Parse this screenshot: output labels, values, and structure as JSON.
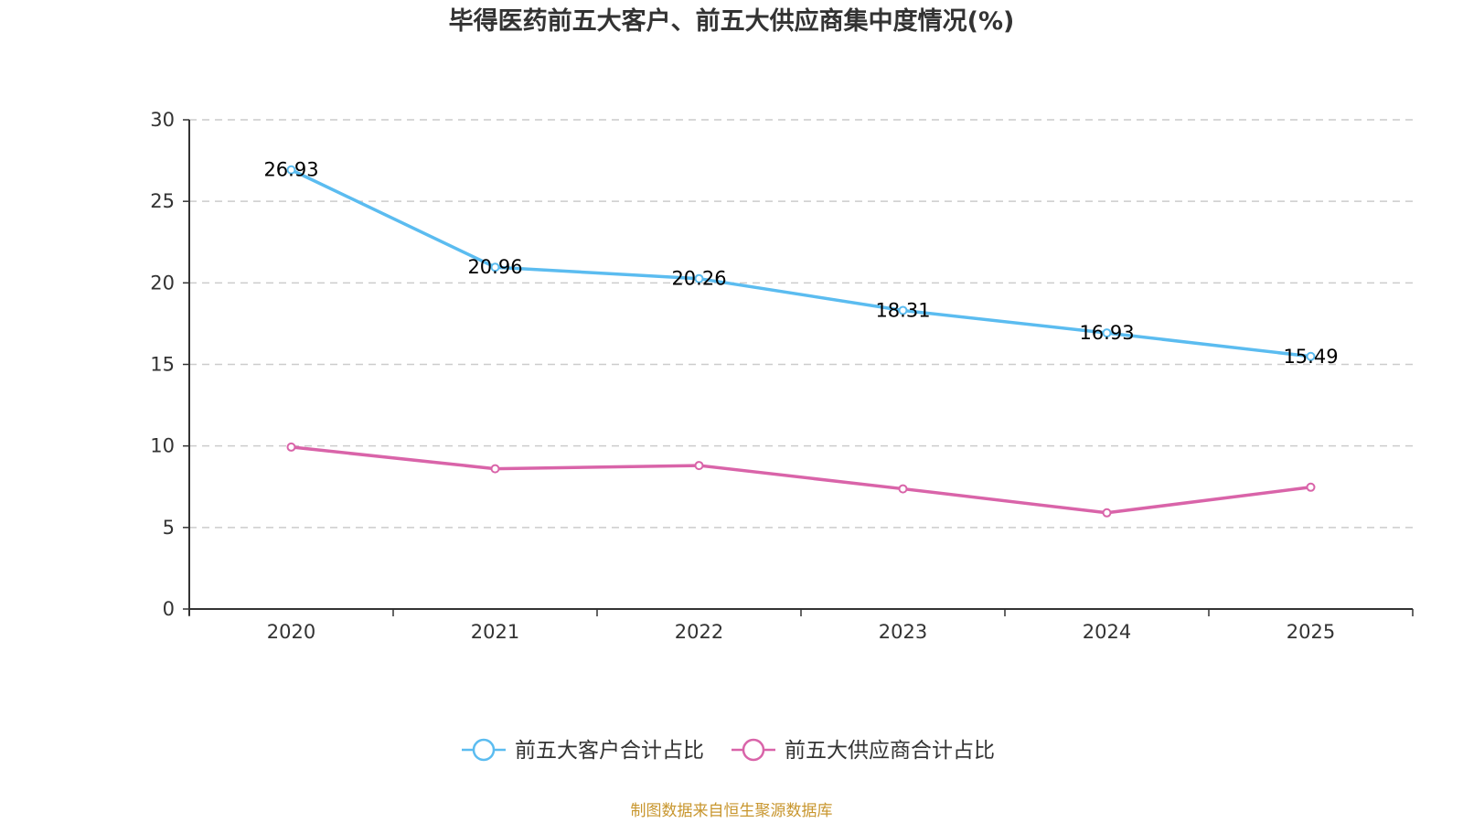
{
  "chart_data": {
    "type": "line",
    "title": "毕得医药前五大客户、前五大供应商集中度情况(%)",
    "xlabel": "",
    "ylabel": "",
    "categories": [
      "2020",
      "2021",
      "2022",
      "2023",
      "2024",
      "2025"
    ],
    "ylim": [
      0,
      30
    ],
    "yticks": [
      "0",
      "5",
      "10",
      "15",
      "20",
      "25",
      "30"
    ],
    "grid": true,
    "legend_position": "bottom-center",
    "series": [
      {
        "name": "前五大客户合计占比",
        "color": "#5bbcf0",
        "values": [
          26.93,
          20.96,
          20.26,
          18.31,
          16.93,
          15.49
        ],
        "labels": [
          "26.93",
          "20.96",
          "20.26",
          "18.31",
          "16.93",
          "15.49"
        ],
        "show_labels": true
      },
      {
        "name": "前五大供应商合计占比",
        "color": "#d964a9",
        "values": [
          9.93,
          8.6,
          8.8,
          7.37,
          5.9,
          7.47
        ],
        "show_labels": false
      }
    ],
    "source": "制图数据来自恒生聚源数据库"
  }
}
